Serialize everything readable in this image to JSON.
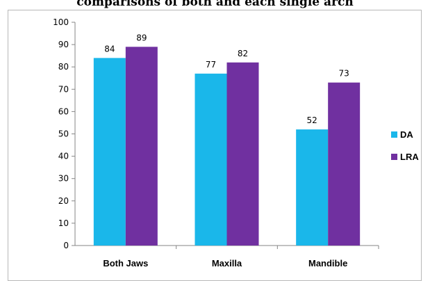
{
  "chart_data": {
    "type": "bar",
    "title": "comparisons of both and each single arch",
    "categories": [
      "Both Jaws",
      "Maxilla",
      "Mandible"
    ],
    "series": [
      {
        "name": "DA",
        "values": [
          84,
          77,
          52
        ],
        "color": "#1ab7ea"
      },
      {
        "name": "LRA",
        "values": [
          89,
          82,
          73
        ],
        "color": "#7030a0"
      }
    ],
    "ylim": [
      0,
      100
    ],
    "yticks": [
      0,
      10,
      20,
      30,
      40,
      50,
      60,
      70,
      80,
      90,
      100
    ],
    "xlabel": "",
    "ylabel": "",
    "grid": false,
    "legend": "right"
  }
}
